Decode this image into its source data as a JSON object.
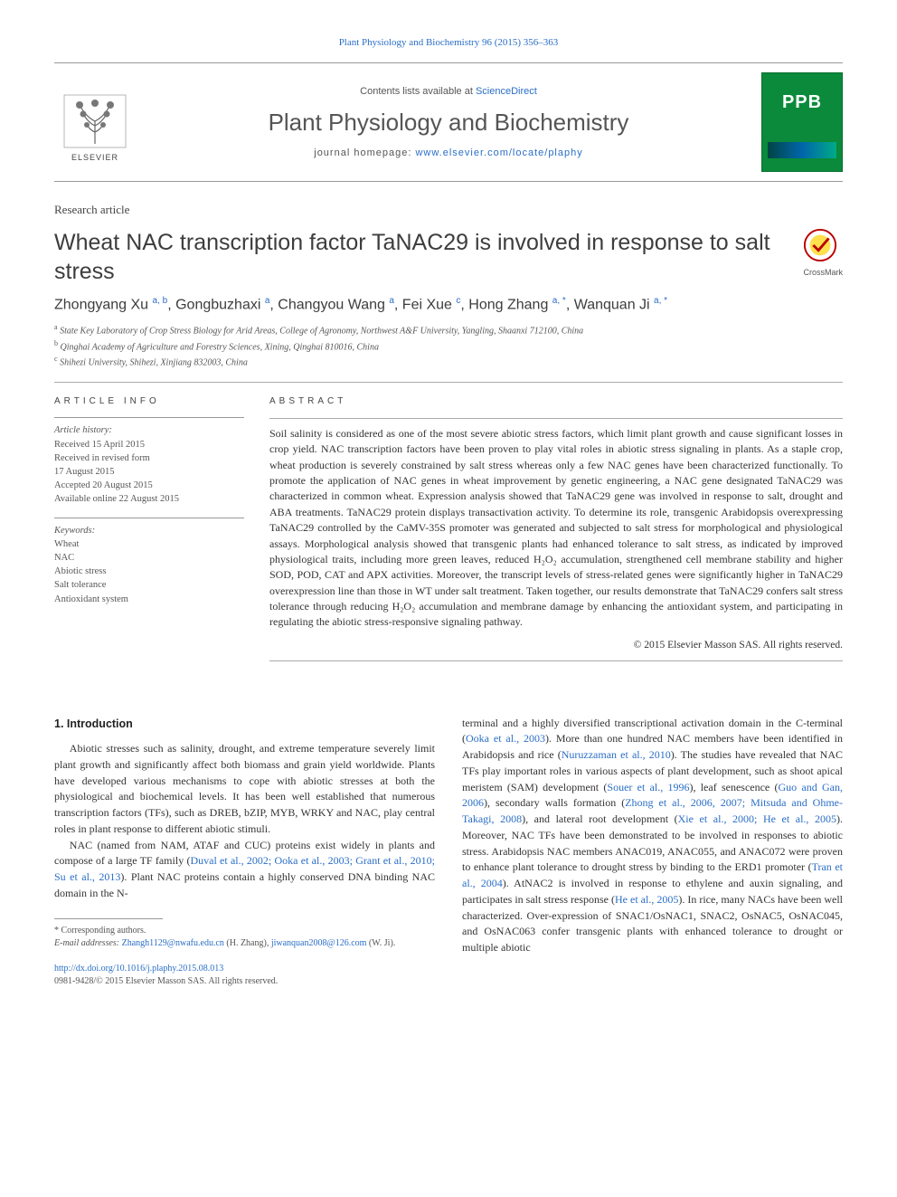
{
  "top_link": "Plant Physiology and Biochemistry 96 (2015) 356–363",
  "masthead": {
    "contents_prefix": "Contents lists available at ",
    "contents_link": "ScienceDirect",
    "journal_name": "Plant Physiology and Biochemistry",
    "homepage_prefix": "journal homepage: ",
    "homepage_url": "www.elsevier.com/locate/plaphy",
    "elsevier_label": "ELSEVIER",
    "ppb_label": "PPB"
  },
  "article_type": "Research article",
  "title": "Wheat NAC transcription factor TaNAC29 is involved in response to salt stress",
  "crossmark_label": "CrossMark",
  "authors_html": "Zhongyang Xu <sup>a, b</sup>, Gongbuzhaxi <sup>a</sup>, Changyou Wang <sup>a</sup>, Fei Xue <sup>c</sup>, Hong Zhang <sup>a, *</sup>, Wanquan Ji <sup>a, *</sup>",
  "affiliations": [
    "a State Key Laboratory of Crop Stress Biology for Arid Areas, College of Agronomy, Northwest A&F University, Yangling, Shaanxi 712100, China",
    "b Qinghai Academy of Agriculture and Forestry Sciences, Xining, Qinghai 810016, China",
    "c Shihezi University, Shihezi, Xinjiang 832003, China"
  ],
  "info": {
    "heading": "ARTICLE INFO",
    "history_label": "Article history:",
    "history": [
      "Received 15 April 2015",
      "Received in revised form",
      "17 August 2015",
      "Accepted 20 August 2015",
      "Available online 22 August 2015"
    ],
    "keywords_label": "Keywords:",
    "keywords": [
      "Wheat",
      "NAC",
      "Abiotic stress",
      "Salt tolerance",
      "Antioxidant system"
    ]
  },
  "abstract": {
    "heading": "ABSTRACT",
    "text": "Soil salinity is considered as one of the most severe abiotic stress factors, which limit plant growth and cause significant losses in crop yield. NAC transcription factors have been proven to play vital roles in abiotic stress signaling in plants. As a staple crop, wheat production is severely constrained by salt stress whereas only a few NAC genes have been characterized functionally. To promote the application of NAC genes in wheat improvement by genetic engineering, a NAC gene designated TaNAC29 was characterized in common wheat. Expression analysis showed that TaNAC29 gene was involved in response to salt, drought and ABA treatments. TaNAC29 protein displays transactivation activity. To determine its role, transgenic Arabidopsis overexpressing TaNAC29 controlled by the CaMV-35S promoter was generated and subjected to salt stress for morphological and physiological assays. Morphological analysis showed that transgenic plants had enhanced tolerance to salt stress, as indicated by improved physiological traits, including more green leaves, reduced H₂O₂ accumulation, strengthened cell membrane stability and higher SOD, POD, CAT and APX activities. Moreover, the transcript levels of stress-related genes were significantly higher in TaNAC29 overexpression line than those in WT under salt treatment. Taken together, our results demonstrate that TaNAC29 confers salt stress tolerance through reducing H₂O₂ accumulation and membrane damage by enhancing the antioxidant system, and participating in regulating the abiotic stress-responsive signaling pathway.",
    "copyright": "© 2015 Elsevier Masson SAS. All rights reserved."
  },
  "intro": {
    "heading": "1. Introduction",
    "para1": "Abiotic stresses such as salinity, drought, and extreme temperature severely limit plant growth and significantly affect both biomass and grain yield worldwide. Plants have developed various mechanisms to cope with abiotic stresses at both the physiological and biochemical levels. It has been well established that numerous transcription factors (TFs), such as DREB, bZIP, MYB, WRKY and NAC, play central roles in plant response to different abiotic stimuli.",
    "para2a": "NAC (named from NAM, ATAF and CUC) proteins exist widely in plants and compose of a large TF family (",
    "para2_cite": "Duval et al., 2002; Ooka et al., 2003; Grant et al., 2010; Su et al., 2013",
    "para2b": "). Plant NAC proteins contain a highly conserved DNA binding NAC domain in the N-",
    "col2a": "terminal and a highly diversified transcriptional activation domain in the C-terminal (",
    "cite_ooka": "Ooka et al., 2003",
    "col2b": "). More than one hundred NAC members have been identified in Arabidopsis and rice (",
    "cite_nur": "Nuruzzaman et al., 2010",
    "col2c": "). The studies have revealed that NAC TFs play important roles in various aspects of plant development, such as shoot apical meristem (SAM) development (",
    "cite_sou": "Souer et al., 1996",
    "col2d": "), leaf senescence (",
    "cite_guo": "Guo and Gan, 2006",
    "col2e": "), secondary walls formation (",
    "cite_zho": "Zhong et al., 2006, 2007; Mitsuda and Ohme-Takagi, 2008",
    "col2f": "), and lateral root development (",
    "cite_xie": "Xie et al., 2000; He et al., 2005",
    "col2g": "). Moreover, NAC TFs have been demonstrated to be involved in responses to abiotic stress. Arabidopsis NAC members ANAC019, ANAC055, and ANAC072 were proven to enhance plant tolerance to drought stress by binding to the ERD1 promoter (",
    "cite_tran": "Tran et al., 2004",
    "col2h": "). AtNAC2 is involved in response to ethylene and auxin signaling, and participates in salt stress response (",
    "cite_he": "He et al., 2005",
    "col2i": "). In rice, many NACs have been well characterized. Over-expression of SNAC1/OsNAC1, SNAC2, OsNAC5, OsNAC045, and OsNAC063 confer transgenic plants with enhanced tolerance to drought or multiple abiotic"
  },
  "footnotes": {
    "corresponding": "* Corresponding authors.",
    "email_label": "E-mail addresses: ",
    "email1": "Zhangh1129@nwafu.edu.cn",
    "email1_name": " (H. Zhang), ",
    "email2": "jiwanquan2008@126.com",
    "email2_name": " (W. Ji)."
  },
  "doi": {
    "url": "http://dx.doi.org/10.1016/j.plaphy.2015.08.013",
    "issn_line": "0981-9428/© 2015 Elsevier Masson SAS. All rights reserved."
  },
  "colors": {
    "link": "#2a6ec6",
    "ppb_green": "#0a8a3a",
    "text": "#333333",
    "rule": "#999999"
  }
}
